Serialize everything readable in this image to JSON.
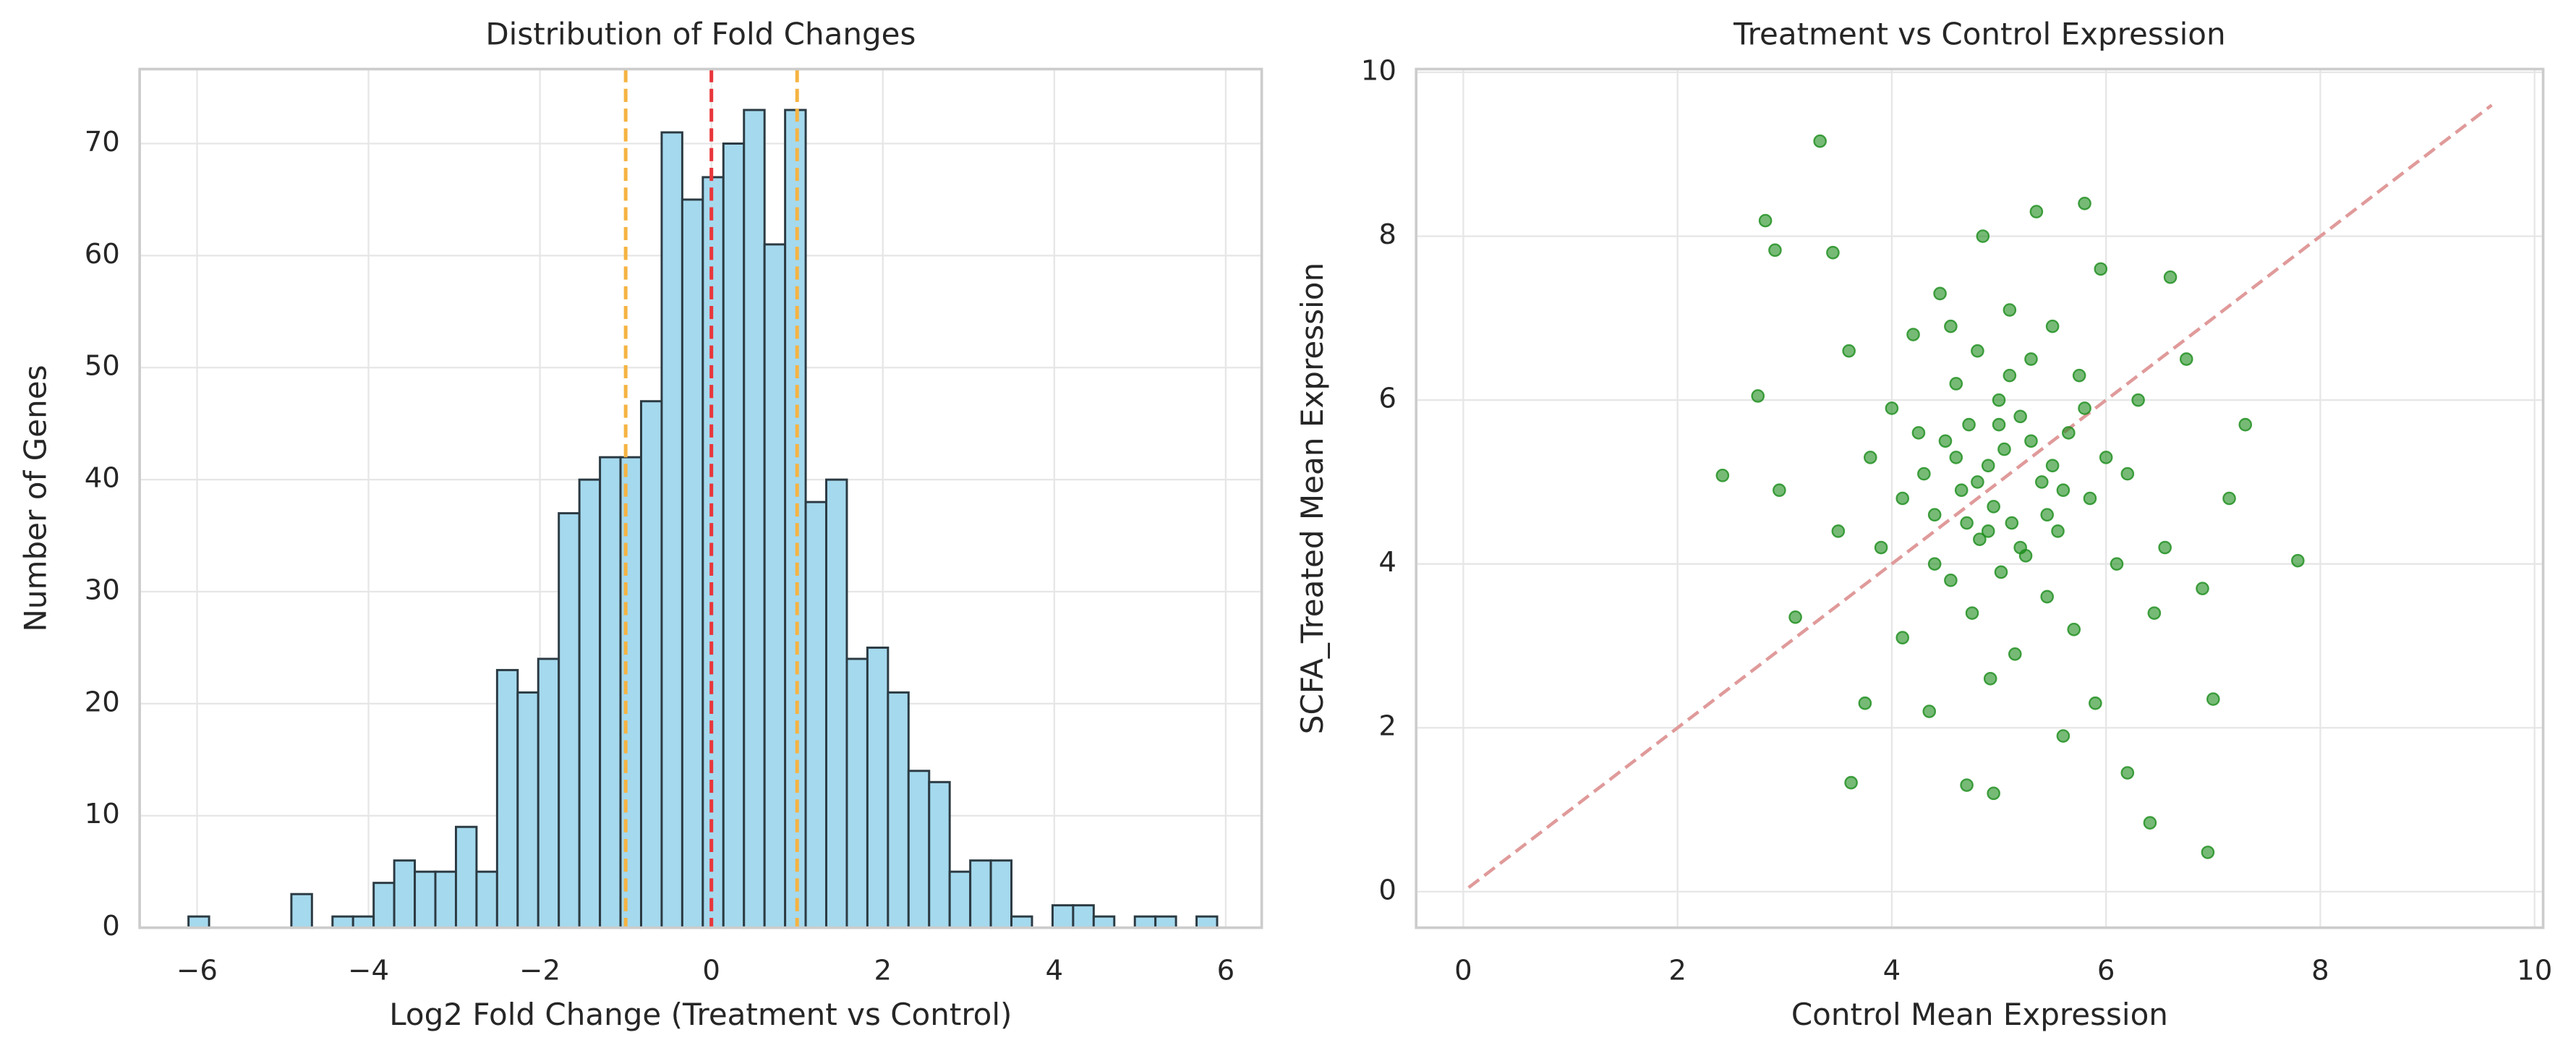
{
  "chart_data": [
    {
      "type": "histogram",
      "title": "Distribution of Fold Changes",
      "x_label": "Log2 Fold Change (Treatment vs Control)",
      "y_label": "Number of Genes",
      "bins": [
        -6.1,
        -5.86,
        -5.62,
        -5.38,
        -5.14,
        -4.9,
        -4.66,
        -4.42,
        -4.18,
        -3.94,
        -3.7,
        -3.46,
        -3.22,
        -2.98,
        -2.74,
        -2.5,
        -2.26,
        -2.02,
        -1.78,
        -1.54,
        -1.3,
        -1.06,
        -0.82,
        -0.58,
        -0.34,
        -0.1,
        0.14,
        0.38,
        0.62,
        0.86,
        1.1,
        1.34,
        1.58,
        1.82,
        2.06,
        2.3,
        2.54,
        2.78,
        3.02,
        3.26,
        3.5,
        3.74,
        3.98,
        4.22,
        4.46,
        4.7,
        4.94,
        5.18,
        5.42,
        5.66,
        5.9
      ],
      "counts": [
        1,
        0,
        0,
        0,
        0,
        3,
        0,
        1,
        1,
        4,
        6,
        5,
        5,
        9,
        5,
        23,
        21,
        24,
        37,
        40,
        42,
        42,
        47,
        71,
        65,
        67,
        70,
        73,
        61,
        73,
        38,
        40,
        24,
        25,
        21,
        14,
        13,
        5,
        6,
        6,
        1,
        0,
        2,
        2,
        1,
        0,
        1,
        1,
        0,
        1
      ],
      "color": "#a5d9ee",
      "edge_color": "#2b3a42",
      "vlines": [
        {
          "x": -1,
          "color": "#f5b342"
        },
        {
          "x": 0,
          "color": "#e8363a"
        },
        {
          "x": 1,
          "color": "#f5b342"
        }
      ],
      "xlim": [
        -6.67,
        6.42
      ],
      "ylim": [
        0,
        76.65
      ],
      "xticks": [
        {
          "value": -6,
          "label": "−6"
        },
        {
          "value": -4,
          "label": "−4"
        },
        {
          "value": -2,
          "label": "−2"
        },
        0,
        2,
        4,
        6
      ],
      "yticks": [
        0,
        10,
        20,
        30,
        40,
        50,
        60,
        70
      ],
      "grid": true
    },
    {
      "type": "scatter",
      "title": "Treatment vs Control Expression",
      "x_label": "Control Mean Expression",
      "y_label": "SCFA_Treated Mean Expression",
      "color": "#1a8c1a",
      "x": [
        3.33,
        2.82,
        2.91,
        2.42,
        3.62,
        6.41,
        6.95,
        7.79,
        7.3,
        2.75,
        2.95,
        3.1,
        3.45,
        3.6,
        3.75,
        3.9,
        4.0,
        4.1,
        4.2,
        4.3,
        4.35,
        4.4,
        4.45,
        4.5,
        4.55,
        4.6,
        4.65,
        4.7,
        4.72,
        4.75,
        4.8,
        4.82,
        4.85,
        4.9,
        4.92,
        4.95,
        5.0,
        5.02,
        5.05,
        5.1,
        5.12,
        5.15,
        5.2,
        5.25,
        5.3,
        5.35,
        5.4,
        5.45,
        5.5,
        5.55,
        5.6,
        5.65,
        5.7,
        5.75,
        5.8,
        5.85,
        5.9,
        5.95,
        6.0,
        6.1,
        6.2,
        6.3,
        6.45,
        6.6,
        6.75,
        6.9,
        7.0,
        7.15,
        4.25,
        4.6,
        4.9,
        5.3,
        5.6,
        4.8,
        5.1,
        4.4,
        5.5,
        5.0,
        4.7,
        5.8,
        4.1,
        3.8,
        5.2,
        6.2,
        4.55,
        5.45,
        3.5,
        6.55,
        4.95
      ],
      "y": [
        9.16,
        8.19,
        7.83,
        5.08,
        1.33,
        0.84,
        0.48,
        4.04,
        5.7,
        6.05,
        4.9,
        3.35,
        7.8,
        6.6,
        2.3,
        4.2,
        5.9,
        3.1,
        6.8,
        5.1,
        2.2,
        4.6,
        7.3,
        5.5,
        3.8,
        6.2,
        4.9,
        1.3,
        5.7,
        3.4,
        6.6,
        4.3,
        8.0,
        5.2,
        2.6,
        4.7,
        6.0,
        3.9,
        5.4,
        7.1,
        4.5,
        2.9,
        5.8,
        4.1,
        6.5,
        8.3,
        5.0,
        3.6,
        6.9,
        4.4,
        1.9,
        5.6,
        3.2,
        6.3,
        8.4,
        4.8,
        2.3,
        7.6,
        5.3,
        4.0,
        1.45,
        6.0,
        3.4,
        7.5,
        6.5,
        3.7,
        2.35,
        4.8,
        5.6,
        5.3,
        4.4,
        5.5,
        4.9,
        5.0,
        6.3,
        4.0,
        5.2,
        5.7,
        4.5,
        5.9,
        4.8,
        5.3,
        4.2,
        5.1,
        6.9,
        4.6,
        4.4,
        4.2,
        1.2
      ],
      "reference_line": {
        "x": [
          0.05,
          9.6
        ],
        "y": [
          0.05,
          9.6
        ],
        "color": "#e09a9a"
      },
      "xlim": [
        -0.44,
        10.08
      ],
      "ylim": [
        -0.44,
        10.04
      ],
      "xticks": [
        0,
        2,
        4,
        6,
        8,
        10
      ],
      "yticks": [
        0,
        2,
        4,
        6,
        8,
        10
      ],
      "grid": true
    }
  ]
}
